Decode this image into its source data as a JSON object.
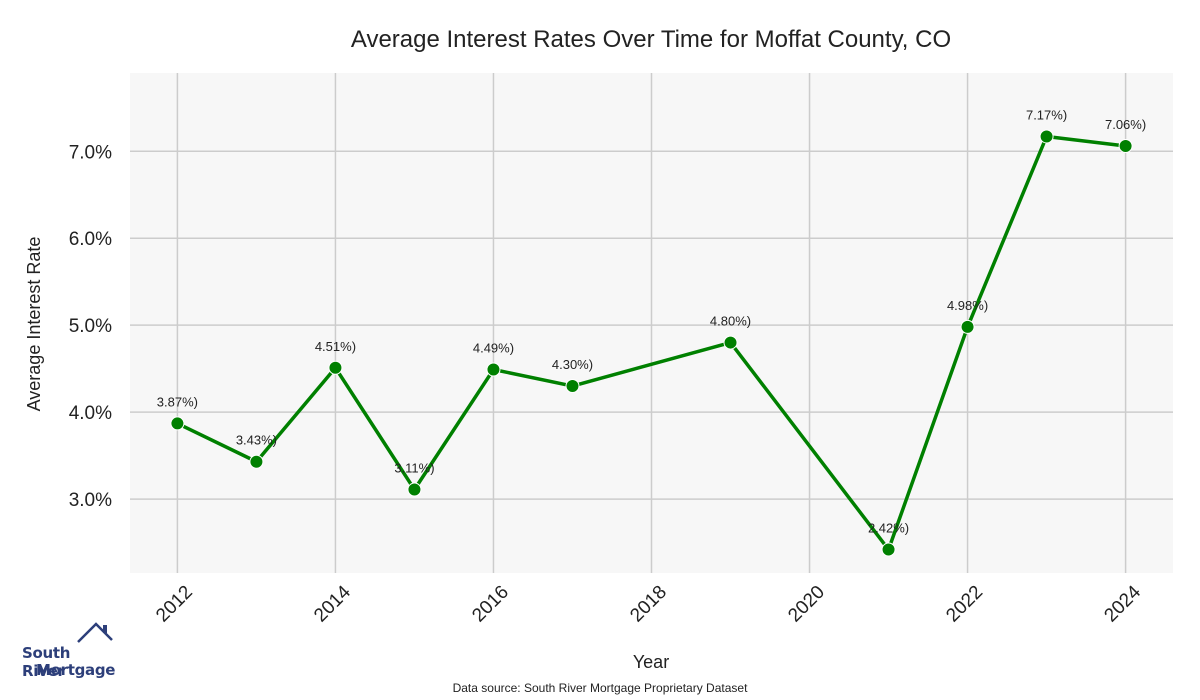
{
  "chart_data": {
    "type": "line",
    "title": "Average Interest Rates Over Time for Moffat County, CO",
    "xlabel": "Year",
    "ylabel": "Average Interest Rate",
    "x": [
      2012,
      2013,
      2014,
      2015,
      2016,
      2017,
      2019,
      2021,
      2022,
      2023,
      2024
    ],
    "y": [
      3.87,
      3.43,
      4.51,
      3.11,
      4.49,
      4.3,
      4.8,
      2.42,
      4.98,
      7.17,
      7.06
    ],
    "point_labels": [
      "3.87%)",
      "3.43%)",
      "4.51%)",
      "3.11%)",
      "4.49%)",
      "4.30%)",
      "4.80%)",
      "2.42%)",
      "4.98%)",
      "7.17%)",
      "7.06%)"
    ],
    "xticks": [
      2012,
      2014,
      2016,
      2018,
      2020,
      2022,
      2024
    ],
    "yticks": [
      3.0,
      4.0,
      5.0,
      6.0,
      7.0
    ],
    "ytick_labels": [
      "3.0%",
      "4.0%",
      "5.0%",
      "6.0%",
      "7.0%"
    ],
    "xlim": [
      2011.4,
      2024.6
    ],
    "ylim": [
      2.15,
      7.9
    ],
    "grid": true,
    "line_color": "#008000",
    "plot_background": "#f7f7f7",
    "grid_color": "#cccccc"
  },
  "logo": {
    "line1": "South River",
    "line2": "Mortgage"
  },
  "source": "Data source: South River Mortgage Proprietary Dataset"
}
